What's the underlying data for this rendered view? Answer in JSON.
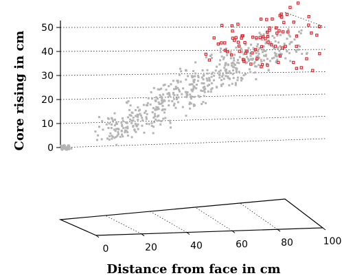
{
  "chart_data": {
    "type": "scatter",
    "projection": "3d",
    "title": "",
    "xlabel": "Distance from face in cm",
    "ylabel": "",
    "zlabel": "Core rising in cm",
    "xlim": [
      0,
      100
    ],
    "zlim": [
      0,
      50
    ],
    "x_ticks": [
      "0",
      "20",
      "40",
      "60",
      "80",
      "100"
    ],
    "z_ticks": [
      "0",
      "10",
      "20",
      "30",
      "40",
      "50"
    ],
    "grid": true,
    "legend": "none",
    "series": [
      {
        "color": "#b4b4b4",
        "marker": "square",
        "points": [
          {
            "x": 2,
            "y": 50,
            "z": 0
          },
          {
            "x": 2,
            "y": 50,
            "z": 0
          },
          {
            "x": 3,
            "y": 50,
            "z": 0
          },
          {
            "x": 3,
            "y": 50,
            "z": 0
          },
          {
            "x": 2,
            "y": 50,
            "z": 0
          },
          {
            "x": 20,
            "y": 50,
            "z": 8
          },
          {
            "x": 22,
            "y": 50,
            "z": 5
          },
          {
            "x": 24,
            "y": 50,
            "z": 10
          },
          {
            "x": 26,
            "y": 50,
            "z": 6
          },
          {
            "x": 28,
            "y": 50,
            "z": 12
          },
          {
            "x": 30,
            "y": 50,
            "z": 9
          },
          {
            "x": 32,
            "y": 50,
            "z": 14
          },
          {
            "x": 34,
            "y": 50,
            "z": 11
          },
          {
            "x": 36,
            "y": 50,
            "z": 16
          },
          {
            "x": 38,
            "y": 50,
            "z": 13
          },
          {
            "x": 40,
            "y": 50,
            "z": 19
          },
          {
            "x": 42,
            "y": 50,
            "z": 15
          },
          {
            "x": 44,
            "y": 50,
            "z": 21
          },
          {
            "x": 46,
            "y": 50,
            "z": 18
          },
          {
            "x": 48,
            "y": 50,
            "z": 24
          },
          {
            "x": 50,
            "y": 50,
            "z": 20
          },
          {
            "x": 52,
            "y": 50,
            "z": 26
          },
          {
            "x": 54,
            "y": 50,
            "z": 23
          },
          {
            "x": 56,
            "y": 50,
            "z": 28
          },
          {
            "x": 58,
            "y": 50,
            "z": 25
          },
          {
            "x": 60,
            "y": 50,
            "z": 30
          },
          {
            "x": 62,
            "y": 50,
            "z": 27
          },
          {
            "x": 64,
            "y": 50,
            "z": 32
          },
          {
            "x": 66,
            "y": 50,
            "z": 29
          },
          {
            "x": 68,
            "y": 50,
            "z": 34
          },
          {
            "x": 70,
            "y": 50,
            "z": 31
          },
          {
            "x": 72,
            "y": 50,
            "z": 36
          },
          {
            "x": 74,
            "y": 50,
            "z": 33
          },
          {
            "x": 76,
            "y": 50,
            "z": 37
          },
          {
            "x": 78,
            "y": 50,
            "z": 35
          },
          {
            "x": 80,
            "y": 50,
            "z": 39
          },
          {
            "x": 82,
            "y": 50,
            "z": 36
          },
          {
            "x": 84,
            "y": 50,
            "z": 40
          },
          {
            "x": 86,
            "y": 50,
            "z": 38
          },
          {
            "x": 88,
            "y": 50,
            "z": 42
          },
          {
            "x": 90,
            "y": 50,
            "z": 39
          },
          {
            "x": 92,
            "y": 50,
            "z": 44
          },
          {
            "x": 94,
            "y": 50,
            "z": 41
          }
        ]
      },
      {
        "color": "#e8202a",
        "marker": "square-open",
        "points": [
          {
            "x": 66,
            "y": 50,
            "z": 40
          },
          {
            "x": 68,
            "y": 50,
            "z": 45
          },
          {
            "x": 70,
            "y": 50,
            "z": 38
          },
          {
            "x": 72,
            "y": 50,
            "z": 47
          },
          {
            "x": 74,
            "y": 50,
            "z": 42
          },
          {
            "x": 76,
            "y": 50,
            "z": 35
          },
          {
            "x": 78,
            "y": 50,
            "z": 44
          },
          {
            "x": 80,
            "y": 50,
            "z": 48
          },
          {
            "x": 82,
            "y": 50,
            "z": 37
          },
          {
            "x": 84,
            "y": 50,
            "z": 43
          },
          {
            "x": 86,
            "y": 50,
            "z": 50
          },
          {
            "x": 88,
            "y": 50,
            "z": 46
          },
          {
            "x": 90,
            "y": 50,
            "z": 40
          },
          {
            "x": 92,
            "y": 50,
            "z": 52
          },
          {
            "x": 94,
            "y": 50,
            "z": 48
          },
          {
            "x": 96,
            "y": 50,
            "z": 44
          },
          {
            "x": 98,
            "y": 50,
            "z": 53
          },
          {
            "x": 99,
            "y": 50,
            "z": 47
          },
          {
            "x": 97,
            "y": 50,
            "z": 38
          },
          {
            "x": 95,
            "y": 50,
            "z": 34
          }
        ]
      }
    ]
  }
}
